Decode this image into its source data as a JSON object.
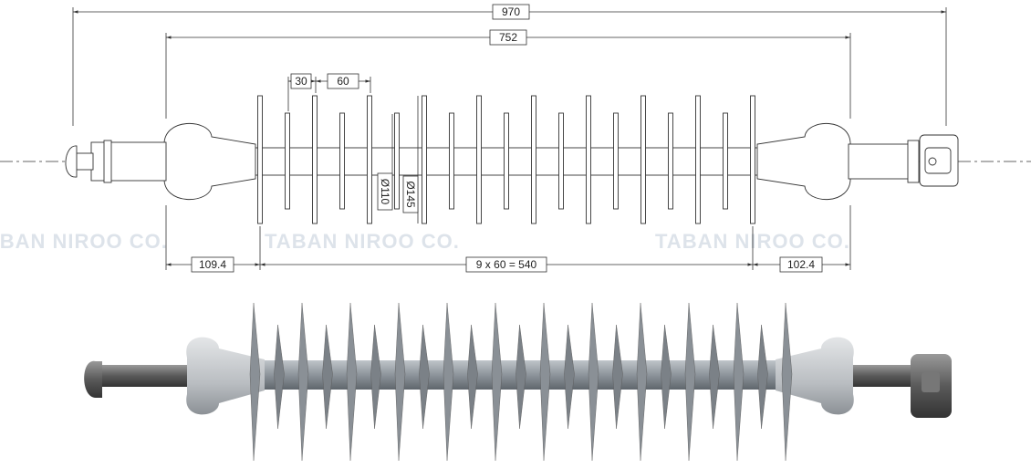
{
  "dimensions": {
    "overall": "970",
    "insulation": "752",
    "small_pitch": "30",
    "large_pitch": "60",
    "small_shed_diameter": "Ø110",
    "large_shed_diameter": "Ø145",
    "left_end": "109.4",
    "shed_section": "9 x 60 = 540",
    "right_end": "102.4"
  },
  "watermarks": [
    "TABAN NIROO CO.",
    "TABAN NIROO CO.",
    "TABAN NIROO CO."
  ]
}
